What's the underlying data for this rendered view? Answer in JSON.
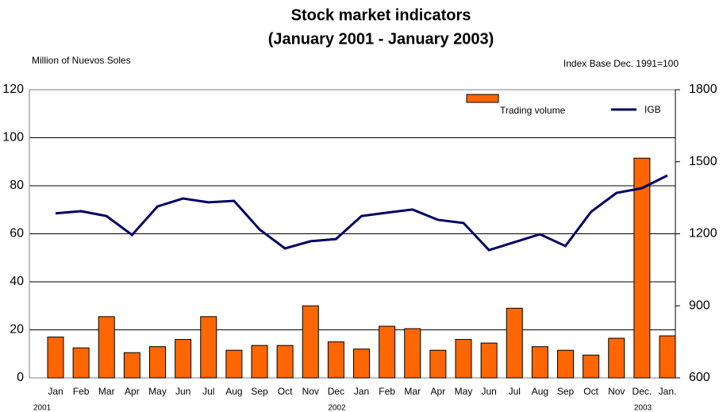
{
  "chart_data": {
    "type": "bar_line",
    "title": [
      "Stock market indicators",
      "(January 2001 - January 2003)"
    ],
    "ylabel": "Million of Nuevos Soles",
    "y2label": "Index Base Dec. 1991=100",
    "categories": [
      "Jan",
      "Feb",
      "Mar",
      "Apr",
      "May",
      "Jun",
      "Jul",
      "Aug",
      "Sep",
      "Oct",
      "Nov",
      "Dec",
      "Jan",
      "Feb",
      "Mar",
      "Apr",
      "May",
      "Jun",
      "Jul",
      "Aug",
      "Sep",
      "Oct",
      "Nov",
      "Dec.",
      "Jan."
    ],
    "year_labels": [
      "2001",
      null,
      null,
      null,
      null,
      null,
      null,
      null,
      null,
      null,
      null,
      "2002",
      null,
      null,
      null,
      null,
      null,
      null,
      null,
      null,
      null,
      null,
      null,
      "2003",
      null
    ],
    "series": [
      {
        "name": "Trading volume",
        "type": "bar",
        "color": "#ff6600",
        "values": [
          17,
          12.5,
          25.5,
          10.5,
          13,
          16,
          25.5,
          11.5,
          13.5,
          13.5,
          30,
          15,
          12,
          21.5,
          20.5,
          11.5,
          16,
          14.5,
          29,
          13,
          11.5,
          9.5,
          16.5,
          91.5,
          17.5
        ]
      },
      {
        "name": "IGB",
        "type": "line",
        "axis": "y2",
        "color": "#000066",
        "values": [
          1285,
          1294,
          1274,
          1195,
          1314,
          1347,
          1331,
          1337,
          1218,
          1139,
          1169,
          1178,
          1274,
          1288,
          1301,
          1258,
          1245,
          1132,
          1165,
          1198,
          1149,
          1291,
          1370,
          1390,
          1443
        ]
      }
    ],
    "ylim": [
      0,
      120
    ],
    "yticks": [
      0,
      20,
      40,
      60,
      80,
      100,
      120
    ],
    "y2lim": [
      600,
      1800
    ],
    "y2ticks": [
      600,
      900,
      1200,
      1500,
      1800
    ],
    "grid": true
  }
}
